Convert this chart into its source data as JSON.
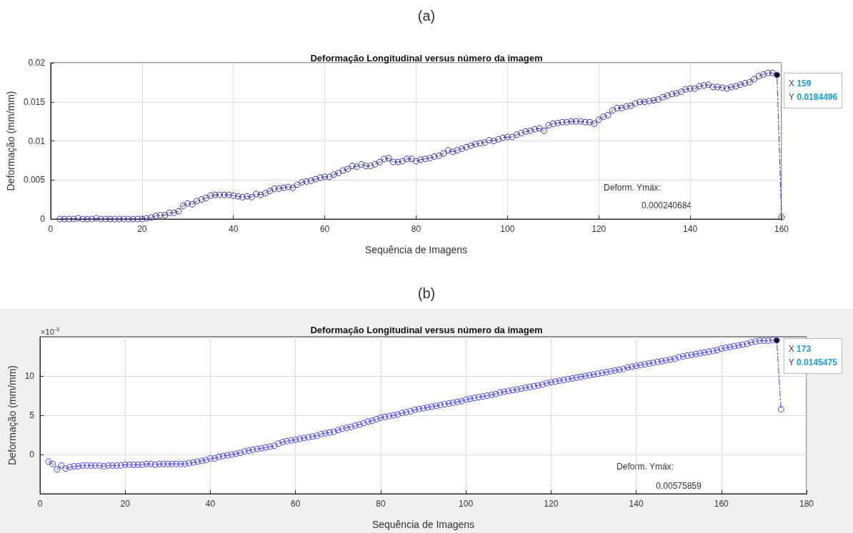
{
  "chart_data": [
    {
      "type": "line",
      "title": "Deformação Longitudinal versus número da imagem",
      "xlabel": "Sequência de Imagens",
      "ylabel": "Deformação (mm/mm)",
      "annotations": [
        "(a)",
        {
          "text": "X 159\nY 0.0184496",
          "x": 159,
          "y": 0.0184496
        },
        "Deform. Ymáx:",
        "0.000240684"
      ],
      "xlim": [
        0,
        160
      ],
      "xticks": [
        0,
        20,
        40,
        60,
        80,
        100,
        120,
        140,
        160
      ],
      "ylim": [
        0,
        0.02
      ],
      "yticks": [
        0,
        0.005,
        0.01,
        0.015,
        0.02
      ],
      "grid": true,
      "marker": "circle",
      "line_style": "dashed",
      "x": [
        2,
        3,
        4,
        5,
        6,
        7,
        8,
        9,
        10,
        11,
        12,
        13,
        14,
        15,
        16,
        17,
        18,
        19,
        20,
        21,
        22,
        23,
        24,
        25,
        26,
        27,
        28,
        29,
        30,
        31,
        32,
        33,
        34,
        35,
        36,
        37,
        38,
        39,
        40,
        41,
        42,
        43,
        44,
        45,
        46,
        47,
        48,
        49,
        50,
        51,
        52,
        53,
        54,
        55,
        56,
        57,
        58,
        59,
        60,
        61,
        62,
        63,
        64,
        65,
        66,
        67,
        68,
        69,
        70,
        71,
        72,
        73,
        74,
        75,
        76,
        77,
        78,
        79,
        80,
        81,
        82,
        83,
        84,
        85,
        86,
        87,
        88,
        89,
        90,
        91,
        92,
        93,
        94,
        95,
        96,
        97,
        98,
        99,
        100,
        101,
        102,
        103,
        104,
        105,
        106,
        107,
        108,
        109,
        110,
        111,
        112,
        113,
        114,
        115,
        116,
        117,
        118,
        119,
        120,
        121,
        122,
        123,
        124,
        125,
        126,
        127,
        128,
        129,
        130,
        131,
        132,
        133,
        134,
        135,
        136,
        137,
        138,
        139,
        140,
        141,
        142,
        143,
        144,
        145,
        146,
        147,
        148,
        149,
        150,
        151,
        152,
        153,
        154,
        155,
        156,
        157,
        158,
        159,
        160
      ],
      "series": [
        {
          "color": "#3030b0",
          "values": [
            0,
            0,
            0,
            0,
            0.0001,
            0,
            0,
            0,
            0.0001,
            0,
            0,
            0,
            0,
            0,
            0,
            0,
            0,
            0,
            0,
            0.0001,
            0.0002,
            0.0004,
            0.0005,
            0.0005,
            0.0008,
            0.0008,
            0.001,
            0.0017,
            0.002,
            0.0019,
            0.0023,
            0.0025,
            0.0027,
            0.003,
            0.0031,
            0.0031,
            0.0031,
            0.0031,
            0.003,
            0.0029,
            0.0028,
            0.0029,
            0.0028,
            0.0032,
            0.0031,
            0.0033,
            0.0036,
            0.0039,
            0.0039,
            0.004,
            0.0041,
            0.004,
            0.0044,
            0.0047,
            0.0048,
            0.0049,
            0.0051,
            0.0053,
            0.0054,
            0.0054,
            0.0057,
            0.0059,
            0.0062,
            0.0064,
            0.0068,
            0.0067,
            0.007,
            0.0068,
            0.0068,
            0.007,
            0.0073,
            0.0077,
            0.0078,
            0.0073,
            0.0073,
            0.0074,
            0.0077,
            0.0077,
            0.0074,
            0.0076,
            0.0077,
            0.0078,
            0.008,
            0.0081,
            0.0084,
            0.0088,
            0.0086,
            0.0088,
            0.009,
            0.0092,
            0.0094,
            0.0096,
            0.0097,
            0.0098,
            0.0101,
            0.01,
            0.0102,
            0.0104,
            0.0105,
            0.0105,
            0.0108,
            0.011,
            0.0112,
            0.0113,
            0.0115,
            0.0116,
            0.0113,
            0.012,
            0.0122,
            0.0123,
            0.0124,
            0.0124,
            0.0125,
            0.0125,
            0.0125,
            0.0124,
            0.0124,
            0.0122,
            0.0127,
            0.0131,
            0.0133,
            0.0139,
            0.0142,
            0.0142,
            0.0144,
            0.0145,
            0.0148,
            0.015,
            0.015,
            0.0151,
            0.0152,
            0.0153,
            0.0156,
            0.0158,
            0.016,
            0.0161,
            0.0163,
            0.0166,
            0.0167,
            0.0167,
            0.017,
            0.0171,
            0.0172,
            0.0169,
            0.0169,
            0.0168,
            0.0167,
            0.0169,
            0.017,
            0.0172,
            0.0174,
            0.0175,
            0.0179,
            0.0183,
            0.0185,
            0.0187,
            0.0187,
            0.0184496,
            0.000240684
          ]
        }
      ]
    },
    {
      "type": "line",
      "title": "Deformação Longitudinal versus número da imagem",
      "xlabel": "Sequência de Imagens",
      "ylabel": "Deformação (mm/mm)",
      "annotations": [
        "(b)",
        "×10$^{-3}$",
        {
          "text": "X 173\nY 0.0145475",
          "x": 173,
          "y": 14.5475
        },
        "Deform. Ymáx:",
        "0.00575859"
      ],
      "xlim": [
        0,
        180
      ],
      "xticks": [
        0,
        20,
        40,
        60,
        80,
        100,
        120,
        140,
        160,
        180
      ],
      "ylim": [
        -5,
        15
      ],
      "yticks": [
        0,
        5,
        10
      ],
      "grid": true,
      "marker": "circle",
      "line_style": "dashed",
      "x": [
        2,
        3,
        4,
        5,
        6,
        7,
        8,
        9,
        10,
        11,
        12,
        13,
        14,
        15,
        16,
        17,
        18,
        19,
        20,
        21,
        22,
        23,
        24,
        25,
        26,
        27,
        28,
        29,
        30,
        31,
        32,
        33,
        34,
        35,
        36,
        37,
        38,
        39,
        40,
        41,
        42,
        43,
        44,
        45,
        46,
        47,
        48,
        49,
        50,
        51,
        52,
        53,
        54,
        55,
        56,
        57,
        58,
        59,
        60,
        61,
        62,
        63,
        64,
        65,
        66,
        67,
        68,
        69,
        70,
        71,
        72,
        73,
        74,
        75,
        76,
        77,
        78,
        79,
        80,
        81,
        82,
        83,
        84,
        85,
        86,
        87,
        88,
        89,
        90,
        91,
        92,
        93,
        94,
        95,
        96,
        97,
        98,
        99,
        100,
        101,
        102,
        103,
        104,
        105,
        106,
        107,
        108,
        109,
        110,
        111,
        112,
        113,
        114,
        115,
        116,
        117,
        118,
        119,
        120,
        121,
        122,
        123,
        124,
        125,
        126,
        127,
        128,
        129,
        130,
        131,
        132,
        133,
        134,
        135,
        136,
        137,
        138,
        139,
        140,
        141,
        142,
        143,
        144,
        145,
        146,
        147,
        148,
        149,
        150,
        151,
        152,
        153,
        154,
        155,
        156,
        157,
        158,
        159,
        160,
        161,
        162,
        163,
        164,
        165,
        166,
        167,
        168,
        169,
        170,
        171,
        172,
        173,
        174
      ],
      "series": [
        {
          "color": "#3b3bff",
          "values": [
            -0.9,
            -1.2,
            -1.9,
            -1.4,
            -1.8,
            -1.6,
            -1.5,
            -1.5,
            -1.4,
            -1.4,
            -1.4,
            -1.4,
            -1.4,
            -1.5,
            -1.4,
            -1.4,
            -1.4,
            -1.4,
            -1.3,
            -1.3,
            -1.3,
            -1.3,
            -1.3,
            -1.2,
            -1.2,
            -1.3,
            -1.2,
            -1.2,
            -1.2,
            -1.2,
            -1.2,
            -1.2,
            -1.2,
            -1.1,
            -1.0,
            -0.9,
            -0.8,
            -0.7,
            -0.5,
            -0.5,
            -0.3,
            -0.2,
            -0.1,
            0,
            0.1,
            0.2,
            0.4,
            0.5,
            0.6,
            0.7,
            0.8,
            0.9,
            1.0,
            1.1,
            1.4,
            1.6,
            1.7,
            1.8,
            1.9,
            2.0,
            2.1,
            2.2,
            2.3,
            2.4,
            2.6,
            2.7,
            2.8,
            2.9,
            3.1,
            3.3,
            3.4,
            3.5,
            3.7,
            3.8,
            4.0,
            4.2,
            4.3,
            4.5,
            4.7,
            4.8,
            4.9,
            5.0,
            5.1,
            5.3,
            5.4,
            5.5,
            5.7,
            5.8,
            5.9,
            6.0,
            6.1,
            6.2,
            6.3,
            6.4,
            6.5,
            6.6,
            6.7,
            6.8,
            7.0,
            7.1,
            7.2,
            7.3,
            7.4,
            7.5,
            7.6,
            7.7,
            7.9,
            8.0,
            8.1,
            8.2,
            8.3,
            8.4,
            8.5,
            8.6,
            8.7,
            8.8,
            8.9,
            9.1,
            9.2,
            9.3,
            9.4,
            9.5,
            9.6,
            9.7,
            9.8,
            9.9,
            10.0,
            10.1,
            10.2,
            10.3,
            10.4,
            10.5,
            10.6,
            10.7,
            10.8,
            10.9,
            11.1,
            11.2,
            11.3,
            11.4,
            11.5,
            11.6,
            11.7,
            11.8,
            11.9,
            12.0,
            12.1,
            12.2,
            12.4,
            12.5,
            12.6,
            12.7,
            12.8,
            12.9,
            13.0,
            13.1,
            13.2,
            13.3,
            13.5,
            13.6,
            13.7,
            13.8,
            13.9,
            14.0,
            14.1,
            14.3,
            14.4,
            14.5,
            14.5,
            14.5,
            14.6,
            14.5475,
            5.75859
          ]
        }
      ]
    }
  ]
}
